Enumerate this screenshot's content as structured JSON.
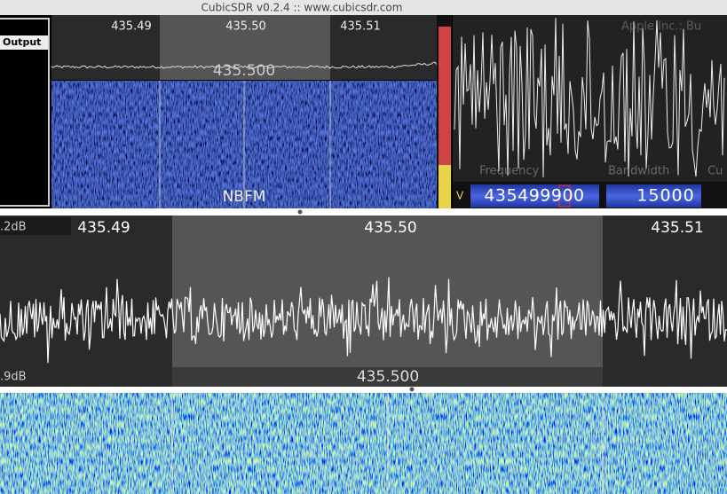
{
  "window": {
    "title": "CubicSDR v0.2.4 :: www.cubicsdr.com"
  },
  "left_panel": {
    "header": "Output"
  },
  "top_spectrum": {
    "freq_labels": [
      "435.49",
      "435.50",
      "435.51"
    ],
    "center_label": "435.500"
  },
  "top_waterfall": {
    "mode": "NBFM"
  },
  "scope": {
    "device_label": "Apple Inc.: Bu",
    "field_labels": [
      "Frequency",
      "Bandwidth",
      "Cu"
    ]
  },
  "controls": {
    "volume_label": "V",
    "frequency": "435499900",
    "bandwidth": "15000"
  },
  "main_spectrum": {
    "db_top": ".2dB",
    "db_bottom": ".9dB",
    "freq_labels": [
      "435.49",
      "435.50",
      "435.51"
    ],
    "center_label": "435.500"
  }
}
